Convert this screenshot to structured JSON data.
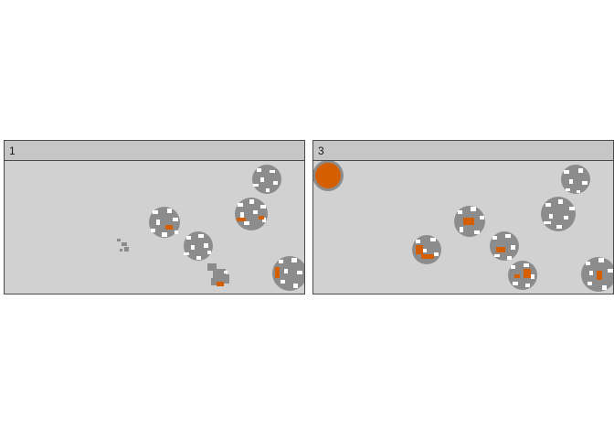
{
  "colors": {
    "strip_bg": "#c6c6c6",
    "panel_bg": "#d1d1d1",
    "cell_grey": "#8c8c8c",
    "cell_white": "#ffffff",
    "highlight_orange": "#d55e00",
    "border": "#4a4a4a"
  },
  "panels": [
    {
      "label": "1"
    },
    {
      "label": "3"
    }
  ]
}
